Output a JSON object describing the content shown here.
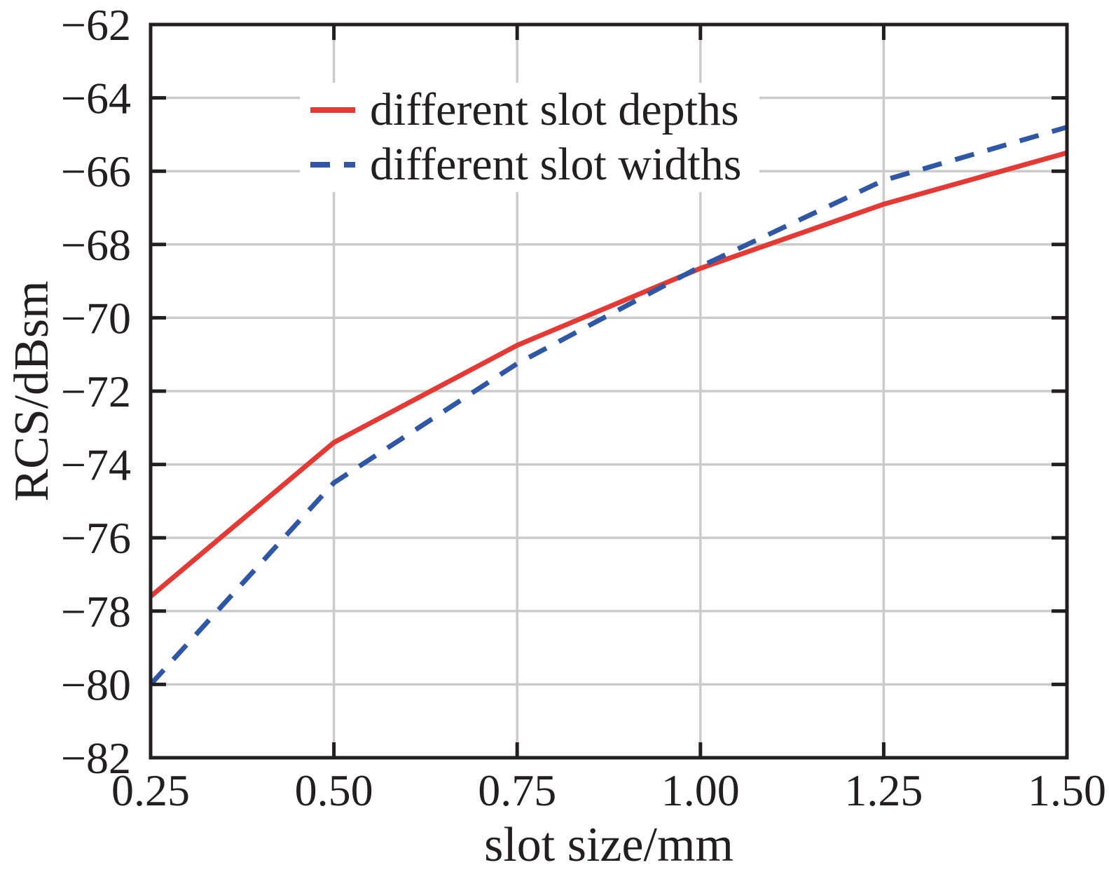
{
  "chart_data": {
    "type": "line",
    "title": "",
    "xlabel": "slot size/mm",
    "ylabel": "RCS/dBsm",
    "x": [
      0.25,
      0.5,
      0.75,
      1.0,
      1.25,
      1.5
    ],
    "series": [
      {
        "name": "different slot depths",
        "style": "solid",
        "color": "#e23b35",
        "values": [
          -77.6,
          -73.4,
          -70.75,
          -68.65,
          -66.9,
          -65.5
        ]
      },
      {
        "name": "different slot widths",
        "style": "dashed",
        "color": "#2f57a4",
        "values": [
          -80.0,
          -74.5,
          -71.25,
          -68.6,
          -66.25,
          -64.8
        ]
      }
    ],
    "xlim": [
      0.25,
      1.5
    ],
    "ylim": [
      -82,
      -62
    ],
    "xticks": {
      "values": [
        0.25,
        0.5,
        0.75,
        1.0,
        1.25,
        1.5
      ],
      "labels": [
        "0.25",
        "0.50",
        "0.75",
        "1.00",
        "1.25",
        "1.50"
      ]
    },
    "yticks": {
      "values": [
        -62,
        -64,
        -66,
        -68,
        -70,
        -72,
        -74,
        -76,
        -78,
        -80,
        -82
      ],
      "labels": [
        "−62",
        "−64",
        "−66",
        "−68",
        "−70",
        "−72",
        "−74",
        "−76",
        "−78",
        "−80",
        "−82"
      ]
    },
    "grid": true,
    "grid_color": "#cbcbcb",
    "axis_color": "#231f20",
    "legend_position": "upper-left-inside"
  }
}
